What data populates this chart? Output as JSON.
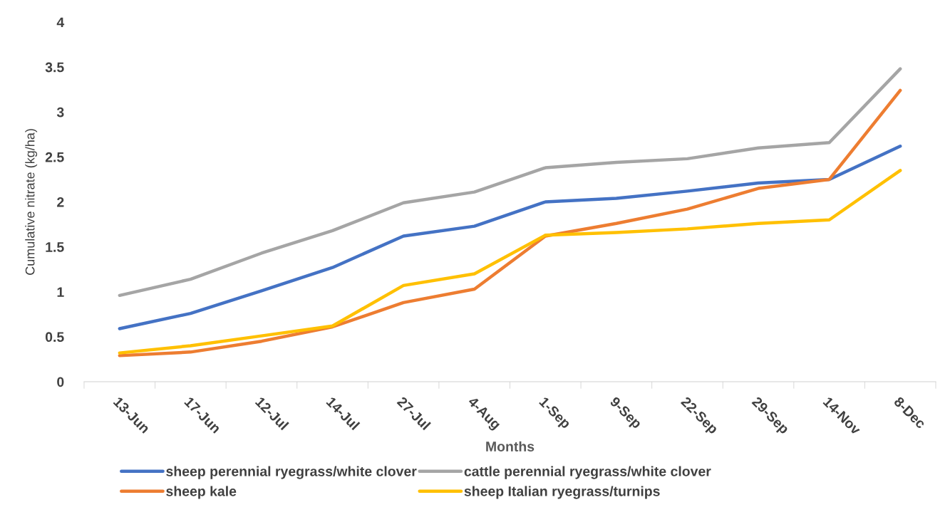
{
  "chart_data": {
    "type": "line",
    "xlabel": "Months",
    "ylabel": "Cumulative nitrate (kg/ha)",
    "categories": [
      "13-Jun",
      "17-Jun",
      "12-Jul",
      "14-Jul",
      "27-Jul",
      "4-Aug",
      "1-Sep",
      "9-Sep",
      "22-Sep",
      "29-Sep",
      "14-Nov",
      "8-Dec"
    ],
    "ylim": [
      0,
      4
    ],
    "yticks": [
      0,
      0.5,
      1,
      1.5,
      2,
      2.5,
      3,
      3.5,
      4
    ],
    "grid": false,
    "legend": "bottom",
    "marker": "none",
    "line_style": "solid",
    "series": [
      {
        "name": "sheep perennial ryegrass/white clover",
        "color": "#4472c4",
        "values": [
          0.59,
          0.76,
          1.01,
          1.27,
          1.62,
          1.73,
          2.0,
          2.04,
          2.12,
          2.21,
          2.25,
          2.62
        ]
      },
      {
        "name": "sheep kale",
        "color": "#ed7d31",
        "values": [
          0.29,
          0.33,
          0.45,
          0.61,
          0.88,
          1.03,
          1.62,
          1.76,
          1.92,
          2.15,
          2.25,
          3.24
        ]
      },
      {
        "name": "cattle perennial ryegrass/white clover",
        "color": "#a5a5a5",
        "values": [
          0.96,
          1.14,
          1.43,
          1.68,
          1.99,
          2.11,
          2.38,
          2.44,
          2.48,
          2.6,
          2.66,
          3.48
        ]
      },
      {
        "name": "sheep Italian ryegrass/turnips",
        "color": "#ffc000",
        "values": [
          0.32,
          0.4,
          0.51,
          0.62,
          1.07,
          1.2,
          1.63,
          1.66,
          1.7,
          1.76,
          1.8,
          2.35
        ]
      }
    ]
  }
}
